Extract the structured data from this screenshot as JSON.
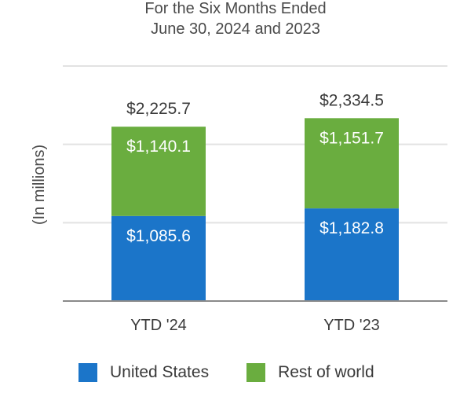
{
  "chart_data": {
    "type": "bar",
    "stacked": true,
    "title": "For the Six Months Ended",
    "subtitle": "June 30, 2024 and 2023",
    "ylabel": "(In millions)",
    "xlabel": "",
    "categories": [
      "YTD '24",
      "YTD '23"
    ],
    "series": [
      {
        "name": "United States",
        "color": "#1b75c9",
        "values": [
          1085.6,
          1182.8
        ],
        "labels": [
          "$1,085.6",
          "$1,182.8"
        ]
      },
      {
        "name": "Rest of world",
        "color": "#6aad3f",
        "values": [
          1140.1,
          1151.7
        ],
        "labels": [
          "$1,140.1",
          "$1,151.7"
        ]
      }
    ],
    "totals": [
      2225.7,
      2334.5
    ],
    "total_labels": [
      "$2,225.7",
      "$2,334.5"
    ],
    "ylim": [
      0,
      3000
    ],
    "grid": true,
    "legend": "bottom"
  }
}
